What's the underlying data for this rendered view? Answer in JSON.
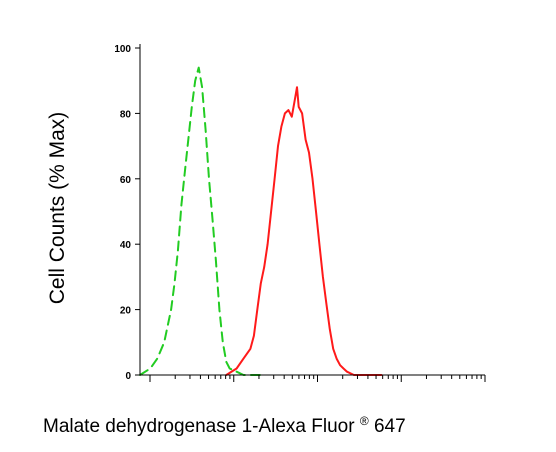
{
  "chart_data": {
    "type": "line",
    "title": "",
    "ylabel": "Cell Counts (% Max)",
    "xlabel": {
      "main": "Malate dehydrogenase 1-Alexa Fluor",
      "superscript": "®",
      "suffix": "647"
    },
    "ylim": [
      0,
      100
    ],
    "yticks": [
      "0",
      "20",
      "40",
      "60",
      "80",
      "100"
    ],
    "x_scale": "log",
    "x_tick_labels_shown": false,
    "grid": false,
    "legend": "none",
    "colors": {
      "control": "#22cc22",
      "sample": "#ff1a1a"
    },
    "series": [
      {
        "style": "dashed",
        "color": "#22cc22",
        "x": [
          0.0,
          0.03,
          0.05,
          0.07,
          0.09,
          0.1,
          0.11,
          0.12,
          0.13,
          0.14,
          0.15,
          0.16,
          0.17,
          0.18,
          0.19,
          0.2,
          0.21,
          0.22,
          0.23,
          0.24,
          0.25,
          0.26,
          0.28,
          0.3,
          0.35
        ],
        "y": [
          0,
          2,
          5,
          10,
          20,
          28,
          38,
          52,
          62,
          72,
          82,
          90,
          94,
          88,
          75,
          60,
          48,
          35,
          20,
          10,
          4,
          2,
          1,
          0,
          0
        ]
      },
      {
        "style": "solid",
        "color": "#ff1a1a",
        "x": [
          0.25,
          0.28,
          0.3,
          0.32,
          0.33,
          0.34,
          0.35,
          0.36,
          0.37,
          0.38,
          0.39,
          0.4,
          0.41,
          0.42,
          0.43,
          0.44,
          0.45,
          0.455,
          0.46,
          0.47,
          0.48,
          0.49,
          0.5,
          0.51,
          0.52,
          0.53,
          0.54,
          0.55,
          0.56,
          0.57,
          0.58,
          0.59,
          0.6,
          0.62,
          0.65,
          0.7
        ],
        "y": [
          0,
          2,
          5,
          8,
          12,
          20,
          28,
          33,
          40,
          50,
          60,
          70,
          76,
          80,
          81,
          79,
          85,
          88,
          82,
          80,
          72,
          68,
          60,
          50,
          40,
          30,
          22,
          14,
          8,
          5,
          3,
          2,
          1,
          0,
          0,
          0
        ]
      }
    ]
  }
}
